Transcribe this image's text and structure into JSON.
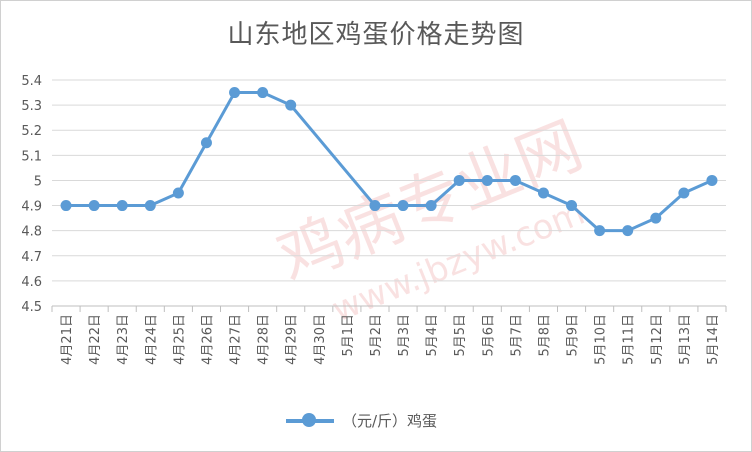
{
  "chart_data": {
    "type": "line",
    "title": "山东地区鸡蛋价格走势图",
    "categories": [
      "4月21日",
      "4月22日",
      "4月23日",
      "4月24日",
      "4月25日",
      "4月26日",
      "4月27日",
      "4月28日",
      "4月29日",
      "4月30日",
      "5月1日",
      "5月2日",
      "5月3日",
      "5月4日",
      "5月5日",
      "5月6日",
      "5月7日",
      "5月8日",
      "5月9日",
      "5月10日",
      "5月11日",
      "5月12日",
      "5月13日",
      "5月14日"
    ],
    "series": [
      {
        "name": "（元/斤）鸡蛋",
        "color": "#5b9bd5",
        "values": [
          4.9,
          4.9,
          4.9,
          4.9,
          4.95,
          5.15,
          5.35,
          5.35,
          5.3,
          null,
          null,
          4.9,
          4.9,
          4.9,
          5.0,
          5.0,
          5.0,
          4.95,
          4.9,
          4.8,
          4.8,
          4.85,
          4.95,
          5.0
        ]
      }
    ],
    "yticks": [
      "4.5",
      "4.6",
      "4.7",
      "4.8",
      "4.9",
      "5",
      "5.1",
      "5.2",
      "5.3",
      "5.4"
    ],
    "ylim": [
      4.5,
      5.4
    ],
    "grid": true,
    "legend_position": "bottom"
  }
}
